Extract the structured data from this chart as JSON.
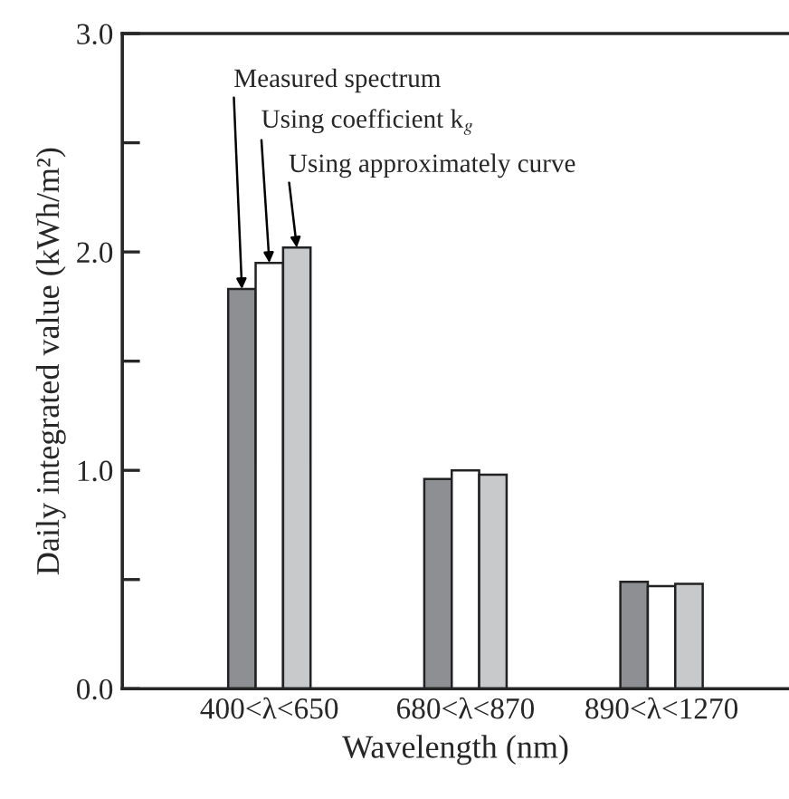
{
  "chart_data": {
    "type": "bar",
    "xlabel": "Wavelength (nm)",
    "ylabel": "Daily integrated value (kWh/m²)",
    "categories": [
      "400<λ<650",
      "680<λ<870",
      "890<λ<1270"
    ],
    "series": [
      {
        "name": "Measured spectrum",
        "color": "#8e8f93",
        "values": [
          1.83,
          0.96,
          0.49
        ]
      },
      {
        "name": "Using coefficient k$_{g}$",
        "color": "#ffffff",
        "values": [
          1.95,
          1.0,
          0.47
        ]
      },
      {
        "name": "Using approximately curve",
        "color": "#c8c9cb",
        "values": [
          2.02,
          0.98,
          0.48
        ]
      }
    ],
    "ylim": [
      0,
      3.0
    ],
    "yticks": [
      {
        "value": 0,
        "label": "0.0"
      },
      {
        "value": 0.5,
        "label": null
      },
      {
        "value": 1.0,
        "label": "1.0"
      },
      {
        "value": 1.5,
        "label": null
      },
      {
        "value": 2.0,
        "label": "2.0"
      },
      {
        "value": 2.5,
        "label": null
      },
      {
        "value": 3.0,
        "label": "3.0"
      }
    ],
    "grid": false,
    "legend": false
  }
}
